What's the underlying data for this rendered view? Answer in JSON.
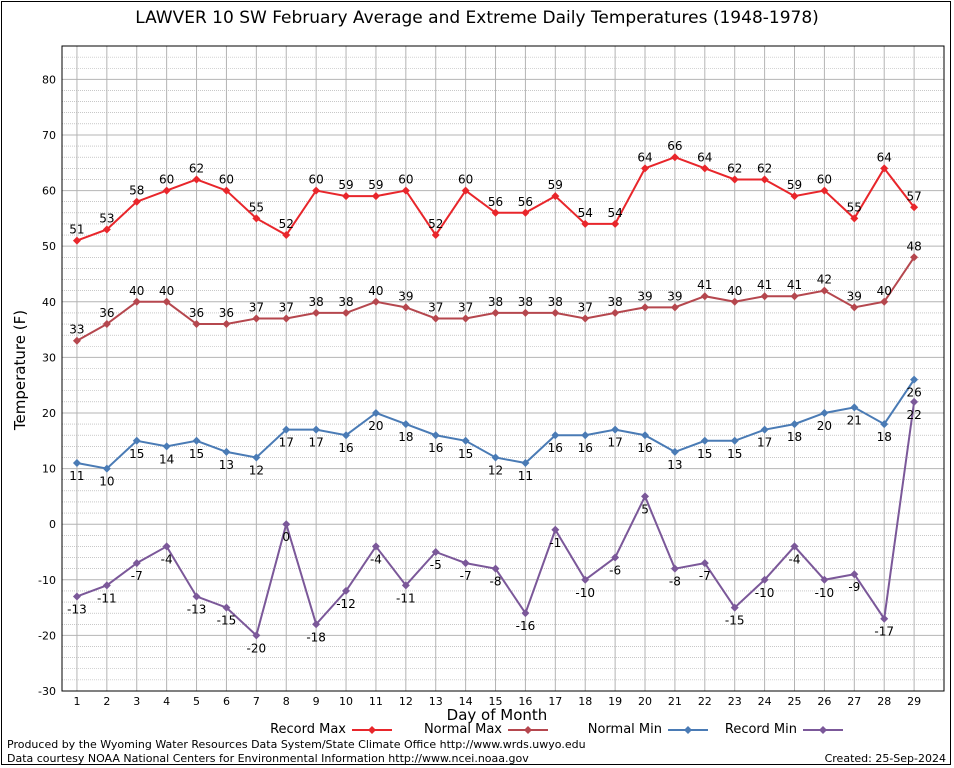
{
  "chart_data": {
    "type": "line",
    "title": "LAWVER 10 SW February Average and Extreme Daily Temperatures (1948-1978)",
    "xlabel": "Day of Month",
    "ylabel": "Temperature (F)",
    "ylim": [
      -30,
      86
    ],
    "yticks": [
      -30,
      -20,
      -10,
      0,
      10,
      20,
      30,
      40,
      50,
      60,
      70,
      80
    ],
    "x": [
      1,
      2,
      3,
      4,
      5,
      6,
      7,
      8,
      9,
      10,
      11,
      12,
      13,
      14,
      15,
      16,
      17,
      18,
      19,
      20,
      21,
      22,
      23,
      24,
      25,
      26,
      27,
      28,
      29
    ],
    "grid": true,
    "legend_position": "bottom",
    "series": [
      {
        "name": "Record Max",
        "color": "#e8262b",
        "label_pos": "above",
        "values": [
          51,
          53,
          58,
          60,
          62,
          60,
          55,
          52,
          60,
          59,
          59,
          60,
          52,
          60,
          56,
          56,
          59,
          54,
          54,
          64,
          66,
          64,
          62,
          62,
          59,
          60,
          55,
          64,
          57
        ]
      },
      {
        "name": "Normal Max",
        "color": "#b5474e",
        "label_pos": "above",
        "values": [
          33,
          36,
          40,
          40,
          36,
          36,
          37,
          37,
          38,
          38,
          40,
          39,
          37,
          37,
          38,
          38,
          38,
          37,
          38,
          39,
          39,
          41,
          40,
          41,
          41,
          42,
          39,
          40,
          48
        ]
      },
      {
        "name": "Normal Min",
        "color": "#4a7bb5",
        "label_pos": "below",
        "values": [
          11,
          10,
          15,
          14,
          15,
          13,
          12,
          17,
          17,
          16,
          20,
          18,
          16,
          15,
          12,
          11,
          16,
          16,
          17,
          16,
          13,
          15,
          15,
          17,
          18,
          20,
          21,
          18,
          26
        ]
      },
      {
        "name": "Record Min",
        "color": "#7b5899",
        "label_pos": "below",
        "values": [
          -13,
          -11,
          -7,
          -4,
          -13,
          -15,
          -20,
          0,
          -18,
          -12,
          -4,
          -11,
          -5,
          -7,
          -8,
          -16,
          -1,
          -10,
          -6,
          5,
          -8,
          -7,
          -15,
          -10,
          -4,
          -10,
          -9,
          -17,
          22
        ]
      }
    ]
  },
  "footer": {
    "line1": "Produced by the Wyoming Water Resources Data System/State Climate Office http://www.wrds.uwyo.edu",
    "line2": "Data courtesy NOAA National Centers for Environmental Information http://www.ncei.noaa.gov",
    "created": "Created:  25-Sep-2024"
  }
}
